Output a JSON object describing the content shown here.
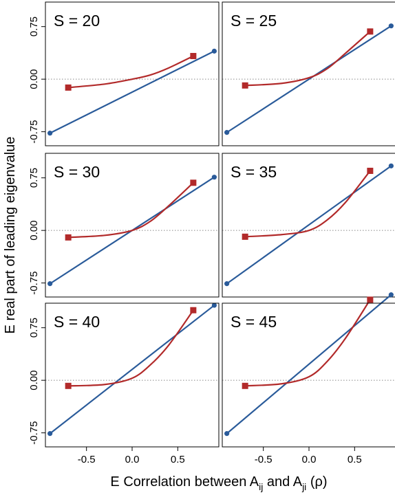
{
  "figure": {
    "ylabel": "E real part of leading eigenvalue",
    "xlabel_parts": [
      "E Correlation between A",
      "ij",
      " and A",
      "ji",
      " (ρ)"
    ]
  },
  "colors": {
    "blue": "#2a5b9a",
    "red": "#b22a2a",
    "frame": "#000000",
    "zero_line": "#888888"
  },
  "chart_data": [
    {
      "type": "line",
      "title": "S = 20",
      "xlim": [
        -0.95,
        0.95
      ],
      "ylim": [
        -0.95,
        1.1
      ],
      "xticks": [
        "-0.5",
        "0.0",
        "0.5"
      ],
      "yticks": [
        "-0.75",
        "0.00",
        "0.75"
      ],
      "series": [
        {
          "marker": "circle",
          "color": "blue",
          "x": [
            -0.9,
            0.9
          ],
          "y": [
            -0.77,
            0.4
          ]
        },
        {
          "marker": "square",
          "color": "red",
          "x": [
            -0.7,
            -0.3,
            0.0,
            0.2,
            0.4,
            0.67
          ],
          "y": [
            -0.12,
            -0.07,
            0.0,
            0.06,
            0.16,
            0.33
          ]
        }
      ]
    },
    {
      "type": "line",
      "title": "S = 25",
      "xlim": [
        -0.95,
        0.95
      ],
      "ylim": [
        -0.95,
        1.1
      ],
      "xticks": [
        "-0.5",
        "0.0",
        "0.5"
      ],
      "yticks": [
        "-0.75",
        "0.00",
        "0.75"
      ],
      "series": [
        {
          "marker": "circle",
          "color": "blue",
          "x": [
            -0.9,
            0.9
          ],
          "y": [
            -0.76,
            0.76
          ]
        },
        {
          "marker": "square",
          "color": "red",
          "x": [
            -0.7,
            -0.3,
            0.0,
            0.2,
            0.4,
            0.67
          ],
          "y": [
            -0.09,
            -0.06,
            0.02,
            0.15,
            0.37,
            0.68
          ]
        }
      ]
    },
    {
      "type": "line",
      "title": "S = 30",
      "xlim": [
        -0.95,
        0.95
      ],
      "ylim": [
        -0.95,
        1.1
      ],
      "xticks": [
        "-0.5",
        "0.0",
        "0.5"
      ],
      "yticks": [
        "-0.75",
        "0.00",
        "0.75"
      ],
      "series": [
        {
          "marker": "circle",
          "color": "blue",
          "x": [
            -0.9,
            0.9
          ],
          "y": [
            -0.76,
            0.76
          ]
        },
        {
          "marker": "square",
          "color": "red",
          "x": [
            -0.7,
            -0.3,
            0.0,
            0.2,
            0.4,
            0.67
          ],
          "y": [
            -0.1,
            -0.07,
            0.0,
            0.13,
            0.35,
            0.68
          ]
        }
      ]
    },
    {
      "type": "line",
      "title": "S = 35",
      "xlim": [
        -0.95,
        0.95
      ],
      "ylim": [
        -0.95,
        1.1
      ],
      "xticks": [
        "-0.5",
        "0.0",
        "0.5"
      ],
      "yticks": [
        "-0.75",
        "0.00",
        "0.75"
      ],
      "series": [
        {
          "marker": "circle",
          "color": "blue",
          "x": [
            -0.9,
            0.9
          ],
          "y": [
            -0.76,
            0.92
          ]
        },
        {
          "marker": "square",
          "color": "red",
          "x": [
            -0.7,
            -0.3,
            0.0,
            0.2,
            0.4,
            0.67
          ],
          "y": [
            -0.09,
            -0.06,
            0.0,
            0.15,
            0.4,
            0.85
          ]
        }
      ]
    },
    {
      "type": "line",
      "title": "S = 40",
      "xlim": [
        -0.95,
        0.95
      ],
      "ylim": [
        -0.95,
        1.1
      ],
      "xticks": [
        "-0.5",
        "0.0",
        "0.5"
      ],
      "yticks": [
        "-0.75",
        "0.00",
        "0.75"
      ],
      "series": [
        {
          "marker": "circle",
          "color": "blue",
          "x": [
            -0.9,
            0.9
          ],
          "y": [
            -0.76,
            1.07
          ]
        },
        {
          "marker": "square",
          "color": "red",
          "x": [
            -0.7,
            -0.3,
            0.0,
            0.2,
            0.4,
            0.67
          ],
          "y": [
            -0.08,
            -0.06,
            0.03,
            0.22,
            0.5,
            1.0
          ]
        }
      ]
    },
    {
      "type": "line",
      "title": "S = 45",
      "xlim": [
        -0.95,
        0.95
      ],
      "ylim": [
        -0.95,
        1.1
      ],
      "xticks": [
        "-0.5",
        "0.0",
        "0.5"
      ],
      "yticks": [
        "-0.75",
        "0.00",
        "0.75"
      ],
      "series": [
        {
          "marker": "circle",
          "color": "blue",
          "x": [
            -0.9,
            0.9
          ],
          "y": [
            -0.76,
            1.22
          ]
        },
        {
          "marker": "square",
          "color": "red",
          "x": [
            -0.7,
            -0.3,
            0.0,
            0.2,
            0.4,
            0.67
          ],
          "y": [
            -0.08,
            -0.05,
            0.05,
            0.27,
            0.6,
            1.15
          ]
        }
      ]
    }
  ]
}
